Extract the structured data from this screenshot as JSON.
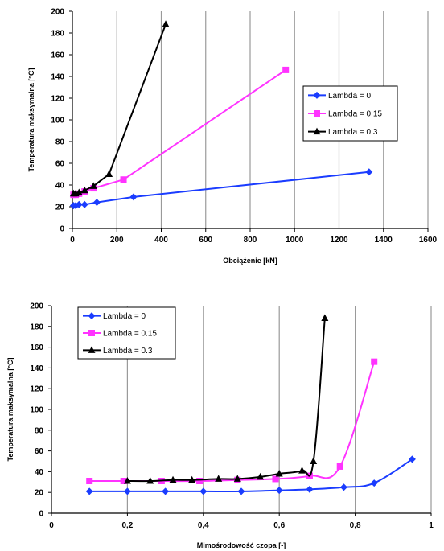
{
  "chart_data": [
    {
      "type": "line",
      "xlabel": "Obciążenie [kN]",
      "ylabel": "Temperatura maksymalna [°C]",
      "xlim": [
        0,
        1600
      ],
      "ylim": [
        0,
        200
      ],
      "xticks": [
        "0",
        "200",
        "400",
        "600",
        "800",
        "1000",
        "1200",
        "1400",
        "1600"
      ],
      "yticks": [
        "0",
        "20",
        "40",
        "60",
        "80",
        "100",
        "120",
        "140",
        "160",
        "180",
        "200"
      ],
      "grid": "vertical",
      "legend_position": "right",
      "series": [
        {
          "name": "Lambda = 0",
          "color": "#1a3cff",
          "marker": "diamond",
          "x": [
            5,
            15,
            30,
            55,
            110,
            275,
            1335
          ],
          "y": [
            21,
            21,
            22,
            22,
            24,
            29,
            52
          ]
        },
        {
          "name": "Lambda = 0.15",
          "color": "#ff33ff",
          "marker": "square",
          "x": [
            5,
            15,
            30,
            55,
            95,
            230,
            960
          ],
          "y": [
            31,
            31,
            32,
            34,
            37,
            45,
            146
          ]
        },
        {
          "name": "Lambda = 0.3",
          "color": "#000000",
          "marker": "triangle",
          "x": [
            5,
            15,
            30,
            55,
            95,
            165,
            420
          ],
          "y": [
            32,
            32,
            33,
            35,
            39,
            50,
            188
          ]
        }
      ]
    },
    {
      "type": "line",
      "xlabel": "Mimośrodowość czopa [-]",
      "ylabel": "Temperatura maksymalna [°C]",
      "xlim": [
        0,
        1
      ],
      "ylim": [
        0,
        200
      ],
      "xticks": [
        "0",
        "0,2",
        "0,4",
        "0,6",
        "0,8",
        "1"
      ],
      "yticks": [
        "0",
        "20",
        "40",
        "60",
        "80",
        "100",
        "120",
        "140",
        "160",
        "180",
        "200"
      ],
      "grid": "vertical",
      "legend_position": "top-left",
      "series": [
        {
          "name": "Lambda = 0",
          "color": "#1a3cff",
          "marker": "diamond",
          "x": [
            0.1,
            0.2,
            0.3,
            0.4,
            0.5,
            0.6,
            0.68,
            0.77,
            0.85,
            0.95
          ],
          "y": [
            21,
            21,
            21,
            21,
            21,
            22,
            23,
            25,
            29,
            52
          ]
        },
        {
          "name": "Lambda = 0.15",
          "color": "#ff33ff",
          "marker": "square",
          "x": [
            0.1,
            0.19,
            0.29,
            0.39,
            0.49,
            0.59,
            0.68,
            0.76,
            0.85
          ],
          "y": [
            31,
            31,
            31,
            31,
            32,
            33,
            36,
            45,
            146
          ]
        },
        {
          "name": "Lambda = 0.3",
          "color": "#000000",
          "marker": "triangle",
          "x": [
            0.2,
            0.26,
            0.32,
            0.37,
            0.44,
            0.49,
            0.55,
            0.6,
            0.66,
            0.69,
            0.72
          ],
          "y": [
            31,
            31,
            32,
            32,
            33,
            33,
            35,
            38,
            41,
            50,
            188
          ]
        }
      ]
    }
  ]
}
